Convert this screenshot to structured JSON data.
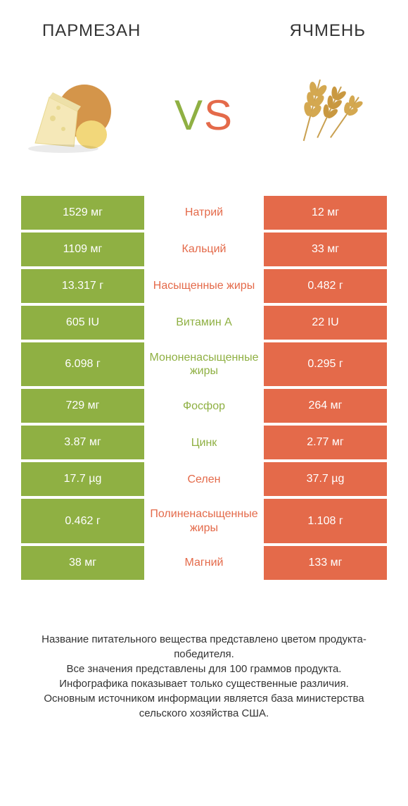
{
  "header": {
    "left": "ПАРМЕЗАН",
    "right": "ЯЧМЕНЬ",
    "title_fontsize": 24,
    "title_color": "#333333"
  },
  "vs": {
    "v_color": "#8fb043",
    "s_color": "#e46a4a",
    "fontsize": 60
  },
  "colors": {
    "green": "#8fb043",
    "red": "#e46a4a",
    "background": "#ffffff",
    "text": "#333333"
  },
  "table": {
    "left_bg": "#8fb043",
    "right_bg": "#e46a4a",
    "cell_font_color": "#ffffff",
    "cell_fontsize": 16,
    "rows": [
      {
        "left": "1529 мг",
        "mid": "Натрий",
        "mid_color": "red",
        "right": "12 мг"
      },
      {
        "left": "1109 мг",
        "mid": "Кальций",
        "mid_color": "red",
        "right": "33 мг"
      },
      {
        "left": "13.317 г",
        "mid": "Насыщенные жиры",
        "mid_color": "red",
        "right": "0.482 г"
      },
      {
        "left": "605 IU",
        "mid": "Витамин A",
        "mid_color": "green",
        "right": "22 IU"
      },
      {
        "left": "6.098 г",
        "mid": "Мононенасыщенные жиры",
        "mid_color": "green",
        "right": "0.295 г"
      },
      {
        "left": "729 мг",
        "mid": "Фосфор",
        "mid_color": "green",
        "right": "264 мг"
      },
      {
        "left": "3.87 мг",
        "mid": "Цинк",
        "mid_color": "green",
        "right": "2.77 мг"
      },
      {
        "left": "17.7 µg",
        "mid": "Селен",
        "mid_color": "red",
        "right": "37.7 µg"
      },
      {
        "left": "0.462 г",
        "mid": "Полиненасыщенные жиры",
        "mid_color": "red",
        "right": "1.108 г"
      },
      {
        "left": "38 мг",
        "mid": "Магний",
        "mid_color": "red",
        "right": "133 мг"
      }
    ]
  },
  "footer": {
    "line1": "Название питательного вещества представлено цветом продукта-победителя.",
    "line2": "Все значения представлены для 100 граммов продукта.",
    "line3": "Инфографика показывает только существенные различия.",
    "line4": "Основным источником информации является база министерства сельского хозяйства США.",
    "fontsize": 15,
    "color": "#333333"
  }
}
